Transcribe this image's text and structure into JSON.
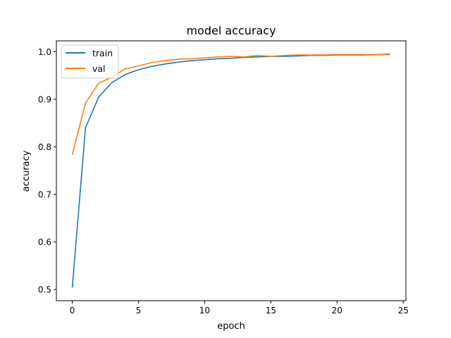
{
  "chart_data": {
    "type": "line",
    "title": "model accuracy",
    "xlabel": "epoch",
    "ylabel": "accuracy",
    "xlim": [
      -1.2,
      25.2
    ],
    "ylim": [
      0.4766,
      1.0227
    ],
    "xticks": [
      0,
      5,
      10,
      15,
      20,
      25
    ],
    "yticks": [
      0.5,
      0.6,
      0.7,
      0.8,
      0.9,
      1.0
    ],
    "xtick_labels": [
      "0",
      "5",
      "10",
      "15",
      "20",
      "25"
    ],
    "ytick_labels": [
      "0.5",
      "0.6",
      "0.7",
      "0.8",
      "0.9",
      "1.0"
    ],
    "grid": false,
    "legend_position": "top-left",
    "x": [
      0,
      1,
      2,
      3,
      4,
      5,
      6,
      7,
      8,
      9,
      10,
      11,
      12,
      13,
      14,
      15,
      16,
      17,
      18,
      19,
      20,
      21,
      22,
      23,
      24
    ],
    "series": [
      {
        "name": "train",
        "color": "#1f77b4",
        "values": [
          0.504,
          0.84,
          0.905,
          0.935,
          0.952,
          0.962,
          0.969,
          0.974,
          0.978,
          0.981,
          0.983,
          0.985,
          0.986,
          0.988,
          0.989,
          0.99,
          0.99,
          0.991,
          0.992,
          0.992,
          0.993,
          0.993,
          0.993,
          0.994,
          0.994
        ]
      },
      {
        "name": "val",
        "color": "#ff7f0e",
        "values": [
          0.783,
          0.892,
          0.934,
          0.946,
          0.964,
          0.97,
          0.977,
          0.981,
          0.984,
          0.985,
          0.987,
          0.989,
          0.99,
          0.989,
          0.992,
          0.99,
          0.992,
          0.993,
          0.993,
          0.993,
          0.994,
          0.994,
          0.994,
          0.994,
          0.995
        ]
      }
    ]
  }
}
